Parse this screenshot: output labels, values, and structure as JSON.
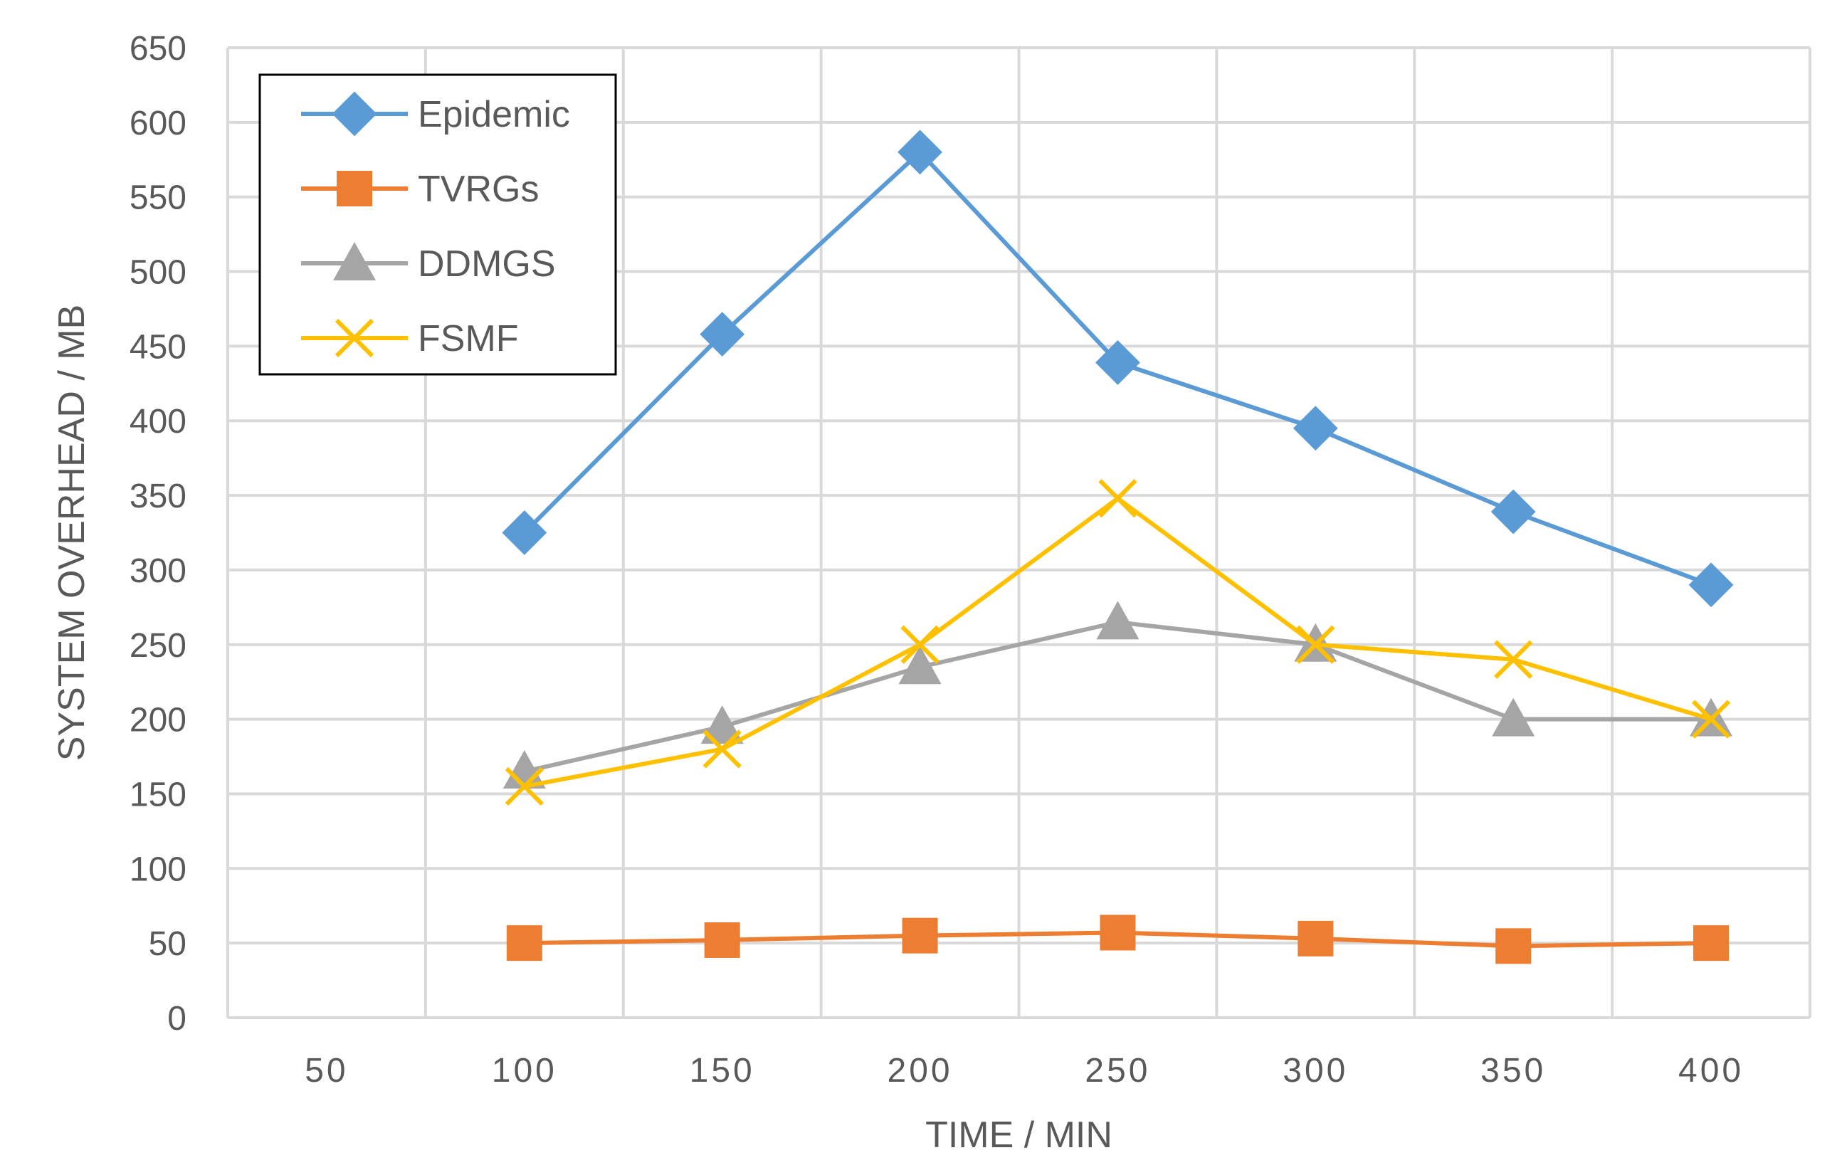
{
  "chart_data": {
    "type": "line",
    "title": "",
    "xlabel": "TIME / MIN",
    "ylabel": "SYSTEM OVERHEAD / MB",
    "categories": [
      "50",
      "100",
      "150",
      "200",
      "250",
      "300",
      "350",
      "400"
    ],
    "ylim": [
      0,
      650
    ],
    "yticks": [
      0,
      50,
      100,
      150,
      200,
      250,
      300,
      350,
      400,
      450,
      500,
      550,
      600,
      650
    ],
    "grid": true,
    "legend_position": "top-left",
    "series": [
      {
        "name": "Epidemic",
        "marker": "diamond",
        "color": "#5B9BD5",
        "values": [
          null,
          325,
          458,
          580,
          439,
          395,
          339,
          290
        ]
      },
      {
        "name": "TVRGs",
        "marker": "square",
        "color": "#ED7D31",
        "values": [
          null,
          50,
          52,
          55,
          57,
          53,
          48,
          50
        ]
      },
      {
        "name": "DDMGS",
        "marker": "triangle",
        "color": "#A5A5A5",
        "values": [
          null,
          165,
          195,
          235,
          265,
          250,
          200,
          200
        ]
      },
      {
        "name": "FSMF",
        "marker": "x",
        "color": "#FFC000",
        "values": [
          null,
          155,
          180,
          250,
          348,
          250,
          240,
          200
        ]
      }
    ]
  }
}
